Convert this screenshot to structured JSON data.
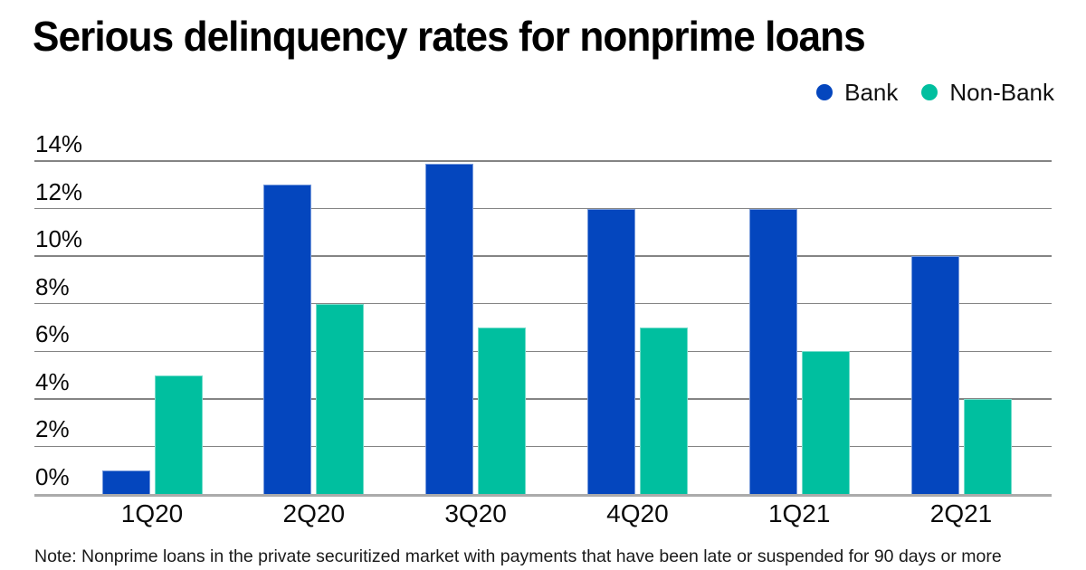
{
  "title": "Serious delinquency rates for nonprime loans",
  "note": "Note: Nonprime loans in the private securitized market with payments that have been late or suspended for 90 days or more",
  "legend": [
    {
      "label": "Bank",
      "color": "#0446BE"
    },
    {
      "label": "Non-Bank",
      "color": "#00BF9F"
    }
  ],
  "colors": {
    "bank": "#0446BE",
    "nonbank": "#00BF9F",
    "gridline": "#848484",
    "baseline": "#ababab"
  },
  "chart_data": {
    "type": "bar",
    "categories": [
      "1Q20",
      "2Q20",
      "3Q20",
      "4Q20",
      "1Q21",
      "2Q21"
    ],
    "series": [
      {
        "name": "Bank",
        "color": "#0446BE",
        "values": [
          1,
          13,
          13.9,
          12,
          12,
          10
        ]
      },
      {
        "name": "Non-Bank",
        "color": "#00BF9F",
        "values": [
          5,
          8,
          7,
          7,
          6,
          4
        ]
      }
    ],
    "title": "Serious delinquency rates for nonprime loans",
    "xlabel": "",
    "ylabel": "",
    "y_ticks": [
      "0%",
      "2%",
      "4%",
      "6%",
      "8%",
      "10%",
      "12%",
      "14%"
    ],
    "y_tick_values": [
      0,
      2,
      4,
      6,
      8,
      10,
      12,
      14
    ],
    "ylim": [
      0,
      14
    ],
    "grid": true,
    "legend_position": "top-right"
  }
}
